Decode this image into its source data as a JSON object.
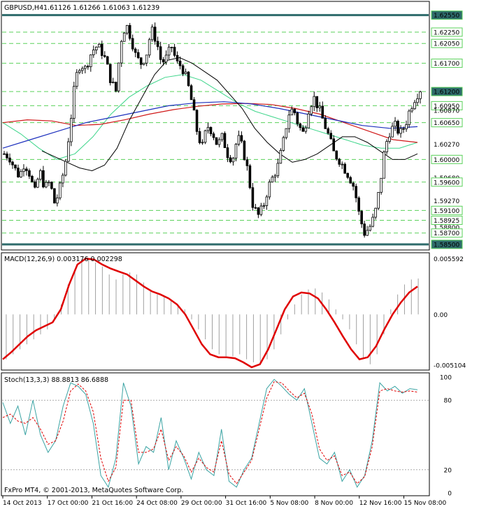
{
  "header": {
    "symbol": "GBPUSD,H4",
    "ohlc": "1.61126 1.61266 1.61063 1.61239"
  },
  "macd_header": "MACD(12,26,9) 0.003176 0.002298",
  "stoch_header": "Stoch(13,3,3) 88.8813 86.6888",
  "copyright": "FxPro MT4, © 2001-2013, MetaQuotes Software Corp.",
  "colors": {
    "frame": "#000000",
    "grid": "#5ad15a",
    "bull": "#ffffff",
    "bear": "#000000",
    "ma_fast": "#000000",
    "ma_green": "#3dd58a",
    "ma_blue": "#1c2fbd",
    "ma_red": "#d01818",
    "macd_hist": "#a0a0a0",
    "macd_signal": "#e00000",
    "stoch_main": "#3aa3a3",
    "stoch_signal": "#e00000",
    "price_tag_bg": "#2e6b6b"
  },
  "chart_data": [
    {
      "type": "candlestick",
      "title": "GBPUSD,H4",
      "ylim": [
        1.5845,
        1.6262
      ],
      "price_labels": [
        "1.62550",
        "1.62250",
        "1.62050",
        "1.61700",
        "1.61200",
        "1.60950",
        "1.60870",
        "1.60650",
        "1.60270",
        "1.60000",
        "1.59680",
        "1.59600",
        "1.59270",
        "1.59100",
        "1.58925",
        "1.58800",
        "1.58700",
        "1.58500"
      ],
      "boxed_labels": [
        "1.62550",
        "1.62250",
        "1.62050",
        "1.61700",
        "1.61200",
        "1.60950",
        "1.60650",
        "1.60000",
        "1.59600",
        "1.59100",
        "1.58925",
        "1.58700",
        "1.58500"
      ],
      "plain_labels": [
        "1.60870",
        "1.60270",
        "1.59680",
        "1.59270",
        "1.58800"
      ],
      "highlighted_label": "1.62550",
      "current_label": "1.61200",
      "x_labels": [
        "14 Oct 2013",
        "17 Oct 00:00",
        "21 Oct 16:00",
        "24 Oct 08:00",
        "29 Oct 00:00",
        "31 Oct 16:00",
        "5 Nov 08:00",
        "8 Nov 00:00",
        "12 Nov 16:00",
        "15 Nov 08:00"
      ],
      "close_path": [
        1.601,
        1.6005,
        1.5985,
        1.597,
        1.5995,
        1.5975,
        1.594,
        1.598,
        1.595,
        1.596,
        1.592,
        1.595,
        1.599,
        1.606,
        1.614,
        1.617,
        1.616,
        1.6185,
        1.62,
        1.6195,
        1.6175,
        1.614,
        1.612,
        1.621,
        1.624,
        1.6215,
        1.618,
        1.617,
        1.6185,
        1.623,
        1.621,
        1.617,
        1.618,
        1.62,
        1.617,
        1.6165,
        1.614,
        1.61,
        1.605,
        1.602,
        1.606,
        1.605,
        1.6025,
        1.604,
        1.601,
        1.6,
        1.604,
        1.602,
        1.598,
        1.592,
        1.59,
        1.5915,
        1.595,
        1.597,
        1.599,
        1.603,
        1.608,
        1.609,
        1.606,
        1.6045,
        1.609,
        1.611,
        1.609,
        1.6065,
        1.604,
        1.601,
        1.6,
        1.5985,
        1.597,
        1.595,
        1.59,
        1.587,
        1.588,
        1.59,
        1.595,
        1.602,
        1.605,
        1.606,
        1.6045,
        1.606,
        1.609,
        1.611,
        1.6124
      ],
      "ma_fast": [
        1.6015,
        1.6005,
        1.5995,
        1.5985,
        1.598,
        1.599,
        1.602,
        1.607,
        1.611,
        1.615,
        1.6175,
        1.618,
        1.617,
        1.6155,
        1.614,
        1.6115,
        1.609,
        1.6055,
        1.603,
        1.601,
        1.5995,
        1.6,
        1.601,
        1.6025,
        1.604,
        1.604,
        1.603,
        1.6015,
        1.6,
        1.6,
        1.601
      ],
      "ma_green": [
        1.6065,
        1.6045,
        1.602,
        1.6,
        1.601,
        1.604,
        1.608,
        1.611,
        1.613,
        1.6145,
        1.615,
        1.614,
        1.612,
        1.61,
        1.6085,
        1.6075,
        1.6065,
        1.6055,
        1.6045,
        1.6035,
        1.6025,
        1.602,
        1.602,
        1.603
      ],
      "ma_blue": [
        1.602,
        1.6035,
        1.605,
        1.6065,
        1.6075,
        1.6085,
        1.6095,
        1.61,
        1.6102,
        1.6098,
        1.609,
        1.608,
        1.607,
        1.606,
        1.6055,
        1.6058
      ],
      "ma_red": [
        1.6065,
        1.607,
        1.6068,
        1.606,
        1.6062,
        1.607,
        1.608,
        1.6088,
        1.6094,
        1.6098,
        1.6099,
        1.6097,
        1.609,
        1.608,
        1.6065,
        1.605,
        1.6035,
        1.603
      ]
    },
    {
      "type": "macd",
      "title": "MACD(12,26,9)",
      "ylim": [
        -0.0053,
        0.0059
      ],
      "y_labels": [
        "0.005592",
        "0.00",
        "-0.005104"
      ],
      "histogram": [
        -0.0045,
        -0.004,
        -0.0035,
        -0.003,
        -0.0025,
        -0.002,
        -0.0015,
        -0.0005,
        0.001,
        0.003,
        0.0045,
        0.0055,
        0.0056,
        0.0052,
        0.0048,
        0.004,
        0.0035,
        0.004,
        0.0042,
        0.004,
        0.0032,
        0.0025,
        0.002,
        0.0018,
        0.0015,
        0.001,
        0.0005,
        -0.0005,
        -0.0015,
        -0.0025,
        -0.0035,
        -0.004,
        -0.0042,
        -0.0042,
        -0.004,
        -0.0045,
        -0.0048,
        -0.005,
        -0.0045,
        -0.0035,
        -0.002,
        -0.0005,
        0.001,
        0.002,
        0.0025,
        0.0026,
        0.0022,
        0.0015,
        0.0005,
        -0.0005,
        -0.0015,
        -0.003,
        -0.0045,
        -0.005,
        -0.004,
        -0.002,
        0.0005,
        0.002,
        0.003,
        0.0035,
        0.0036
      ],
      "signal": [
        -0.0045,
        -0.0038,
        -0.003,
        -0.0022,
        -0.0016,
        -0.0012,
        -0.0008,
        0.0005,
        0.003,
        0.005,
        0.0056,
        0.0055,
        0.005,
        0.0046,
        0.0043,
        0.004,
        0.0034,
        0.0028,
        0.0023,
        0.002,
        0.0016,
        0.001,
        0.0,
        -0.0015,
        -0.003,
        -0.004,
        -0.0043,
        -0.0043,
        -0.0044,
        -0.0048,
        -0.0053,
        -0.005,
        -0.0035,
        -0.0015,
        0.0005,
        0.0018,
        0.0022,
        0.0021,
        0.0016,
        0.0005,
        -0.0008,
        -0.0022,
        -0.0035,
        -0.0045,
        -0.0043,
        -0.0032,
        -0.0015,
        0.0,
        0.0012,
        0.0022,
        0.0028
      ]
    },
    {
      "type": "stochastic",
      "title": "Stoch(13,3,3)",
      "ylim": [
        0,
        100
      ],
      "y_labels": [
        "100",
        "80",
        "20",
        "0"
      ],
      "levels": [
        80,
        20
      ],
      "main": [
        78,
        60,
        75,
        50,
        80,
        50,
        35,
        45,
        75,
        95,
        92,
        85,
        60,
        15,
        5,
        30,
        95,
        75,
        25,
        40,
        35,
        65,
        20,
        45,
        30,
        12,
        35,
        20,
        15,
        55,
        10,
        5,
        20,
        30,
        60,
        90,
        98,
        92,
        85,
        80,
        90,
        60,
        30,
        25,
        35,
        10,
        20,
        5,
        15,
        45,
        95,
        88,
        92,
        86,
        90,
        89
      ],
      "signal": [
        65,
        68,
        62,
        60,
        65,
        55,
        42,
        45,
        62,
        88,
        94,
        88,
        70,
        30,
        10,
        22,
        80,
        80,
        35,
        35,
        38,
        55,
        28,
        40,
        32,
        18,
        30,
        22,
        18,
        45,
        16,
        8,
        18,
        28,
        55,
        82,
        96,
        95,
        88,
        82,
        86,
        68,
        38,
        28,
        32,
        15,
        18,
        8,
        14,
        40,
        88,
        90,
        88,
        87,
        88,
        87
      ]
    }
  ]
}
